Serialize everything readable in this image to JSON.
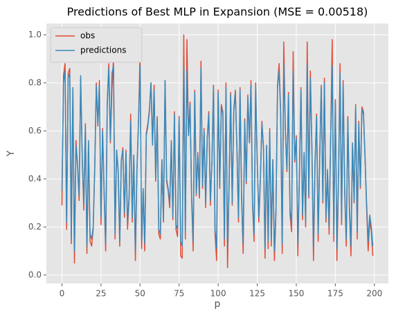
{
  "chart_data": {
    "type": "line",
    "title": "Predictions of Best MLP in  Expansion (MSE = 0.00518)",
    "x_label": "p",
    "y_label": "Y",
    "x": [
      0,
      1,
      2,
      3,
      4,
      5,
      6,
      7,
      8,
      9,
      10,
      11,
      12,
      13,
      14,
      15,
      16,
      17,
      18,
      19,
      20,
      21,
      22,
      23,
      24,
      25,
      26,
      27,
      28,
      29,
      30,
      31,
      32,
      33,
      34,
      35,
      36,
      37,
      38,
      39,
      40,
      41,
      42,
      43,
      44,
      45,
      46,
      47,
      48,
      49,
      50,
      51,
      52,
      53,
      54,
      55,
      56,
      57,
      58,
      59,
      60,
      61,
      62,
      63,
      64,
      65,
      66,
      67,
      68,
      69,
      70,
      71,
      72,
      73,
      74,
      75,
      76,
      77,
      78,
      79,
      80,
      81,
      82,
      83,
      84,
      85,
      86,
      87,
      88,
      89,
      90,
      91,
      92,
      93,
      94,
      95,
      96,
      97,
      98,
      99,
      100,
      101,
      102,
      103,
      104,
      105,
      106,
      107,
      108,
      109,
      110,
      111,
      112,
      113,
      114,
      115,
      116,
      117,
      118,
      119,
      120,
      121,
      122,
      123,
      124,
      125,
      126,
      127,
      128,
      129,
      130,
      131,
      132,
      133,
      134,
      135,
      136,
      137,
      138,
      139,
      140,
      141,
      142,
      143,
      144,
      145,
      146,
      147,
      148,
      149,
      150,
      151,
      152,
      153,
      154,
      155,
      156,
      157,
      158,
      159,
      160,
      161,
      162,
      163,
      164,
      165,
      166,
      167,
      168,
      169,
      170,
      171,
      172,
      173,
      174,
      175,
      176,
      177,
      178,
      179,
      180,
      181,
      182,
      183,
      184,
      185,
      186,
      187,
      188,
      189,
      190,
      191,
      192,
      193,
      194,
      195,
      196,
      197,
      198,
      199
    ],
    "series": [
      {
        "name": "obs",
        "color": "#E24A33",
        "values": [
          0.29,
          0.83,
          0.88,
          0.19,
          0.84,
          0.86,
          0.13,
          0.77,
          0.05,
          0.56,
          0.45,
          0.31,
          0.82,
          0.48,
          0.27,
          0.63,
          0.09,
          0.55,
          0.14,
          0.12,
          0.19,
          0.44,
          0.8,
          0.62,
          0.81,
          0.21,
          0.61,
          0.34,
          0.1,
          0.72,
          0.88,
          0.55,
          0.77,
          0.9,
          0.15,
          0.52,
          0.43,
          0.12,
          0.47,
          0.53,
          0.24,
          0.52,
          0.19,
          0.32,
          0.67,
          0.22,
          0.5,
          0.06,
          0.43,
          0.64,
          0.92,
          0.11,
          0.35,
          0.1,
          0.59,
          0.63,
          0.69,
          0.8,
          0.55,
          0.79,
          0.39,
          0.66,
          0.17,
          0.15,
          0.48,
          0.22,
          0.81,
          0.39,
          0.35,
          0.28,
          0.56,
          0.23,
          0.68,
          0.19,
          0.16,
          0.66,
          0.08,
          0.07,
          1.0,
          0.15,
          0.98,
          0.58,
          0.72,
          0.32,
          0.1,
          0.77,
          0.33,
          0.51,
          0.32,
          0.89,
          0.36,
          0.61,
          0.28,
          0.57,
          0.68,
          0.29,
          0.47,
          0.79,
          0.17,
          0.06,
          0.77,
          0.36,
          0.71,
          0.68,
          0.12,
          0.8,
          0.03,
          0.38,
          0.76,
          0.29,
          0.69,
          0.77,
          0.53,
          0.22,
          0.78,
          0.31,
          0.09,
          0.65,
          0.38,
          0.75,
          0.55,
          0.81,
          0.29,
          0.14,
          0.8,
          0.47,
          0.22,
          0.39,
          0.64,
          0.53,
          0.07,
          0.54,
          0.11,
          0.61,
          0.12,
          0.48,
          0.06,
          0.26,
          0.79,
          0.88,
          0.68,
          0.09,
          0.97,
          0.6,
          0.43,
          0.76,
          0.25,
          0.18,
          0.93,
          0.47,
          0.58,
          0.08,
          0.41,
          0.78,
          0.23,
          0.51,
          0.2,
          0.97,
          0.32,
          0.85,
          0.53,
          0.06,
          0.46,
          0.67,
          0.14,
          0.5,
          0.79,
          0.3,
          0.82,
          0.22,
          0.43,
          0.17,
          0.57,
          0.98,
          0.14,
          0.73,
          0.06,
          0.39,
          0.88,
          0.21,
          0.81,
          0.34,
          0.12,
          0.66,
          0.27,
          0.08,
          0.55,
          0.3,
          0.71,
          0.15,
          0.64,
          0.36,
          0.7,
          0.68,
          0.49,
          0.28,
          0.1,
          0.23,
          0.18,
          0.08
        ]
      },
      {
        "name": "predictions",
        "color": "#348ABD",
        "values": [
          0.35,
          0.8,
          0.85,
          0.22,
          0.82,
          0.84,
          0.15,
          0.78,
          0.1,
          0.54,
          0.46,
          0.33,
          0.83,
          0.49,
          0.3,
          0.62,
          0.12,
          0.56,
          0.17,
          0.15,
          0.2,
          0.45,
          0.79,
          0.63,
          0.79,
          0.24,
          0.6,
          0.35,
          0.13,
          0.71,
          0.86,
          0.56,
          0.84,
          0.87,
          0.17,
          0.52,
          0.44,
          0.14,
          0.48,
          0.52,
          0.26,
          0.51,
          0.22,
          0.33,
          0.64,
          0.24,
          0.5,
          0.1,
          0.44,
          0.63,
          0.87,
          0.14,
          0.36,
          0.13,
          0.58,
          0.62,
          0.68,
          0.8,
          0.54,
          0.77,
          0.4,
          0.65,
          0.19,
          0.17,
          0.48,
          0.23,
          0.81,
          0.4,
          0.36,
          0.3,
          0.55,
          0.24,
          0.67,
          0.21,
          0.19,
          0.65,
          0.14,
          0.12,
          0.87,
          0.18,
          0.85,
          0.58,
          0.71,
          0.33,
          0.14,
          0.76,
          0.34,
          0.5,
          0.33,
          0.86,
          0.37,
          0.6,
          0.3,
          0.57,
          0.67,
          0.31,
          0.47,
          0.78,
          0.19,
          0.11,
          0.76,
          0.37,
          0.7,
          0.67,
          0.15,
          0.78,
          0.11,
          0.38,
          0.75,
          0.3,
          0.68,
          0.76,
          0.53,
          0.24,
          0.77,
          0.33,
          0.13,
          0.64,
          0.39,
          0.74,
          0.55,
          0.79,
          0.3,
          0.17,
          0.79,
          0.47,
          0.24,
          0.4,
          0.63,
          0.53,
          0.11,
          0.54,
          0.14,
          0.6,
          0.15,
          0.48,
          0.1,
          0.27,
          0.78,
          0.85,
          0.67,
          0.13,
          0.88,
          0.6,
          0.44,
          0.75,
          0.27,
          0.21,
          0.85,
          0.48,
          0.57,
          0.13,
          0.42,
          0.77,
          0.25,
          0.51,
          0.22,
          0.88,
          0.33,
          0.82,
          0.53,
          0.11,
          0.47,
          0.66,
          0.17,
          0.5,
          0.78,
          0.31,
          0.8,
          0.24,
          0.44,
          0.2,
          0.57,
          0.87,
          0.17,
          0.72,
          0.11,
          0.4,
          0.84,
          0.23,
          0.79,
          0.35,
          0.15,
          0.65,
          0.29,
          0.12,
          0.55,
          0.31,
          0.7,
          0.18,
          0.63,
          0.37,
          0.69,
          0.67,
          0.49,
          0.3,
          0.14,
          0.25,
          0.2,
          0.12
        ]
      }
    ],
    "xlim": [
      -9.95,
      208.95
    ],
    "ylim": [
      -0.035,
      1.047
    ],
    "xticks": [
      0,
      25,
      50,
      75,
      100,
      125,
      150,
      175,
      200
    ],
    "yticks": [
      {
        "value": 0,
        "label": "0.0"
      },
      0.2,
      0.4,
      0.6,
      0.8,
      {
        "value": 1,
        "label": "1.0"
      }
    ],
    "grid": true,
    "legend": "upper left"
  }
}
